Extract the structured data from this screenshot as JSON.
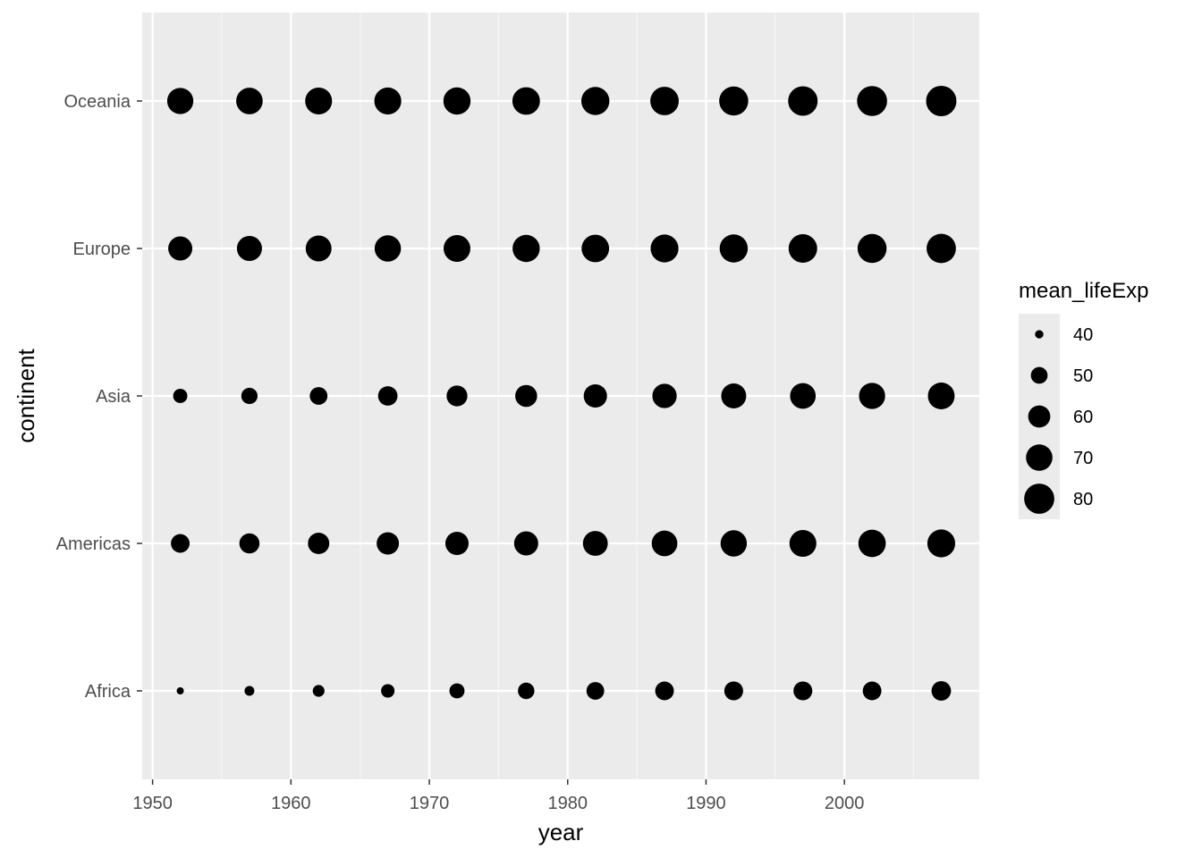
{
  "chart_data": {
    "type": "scatter",
    "title": "",
    "xlabel": "year",
    "ylabel": "continent",
    "xlim": [
      1949.25,
      2009.75
    ],
    "x_ticks": [
      1950,
      1960,
      1970,
      1980,
      1990,
      2000
    ],
    "x_tick_labels": [
      "1950",
      "1960",
      "1970",
      "1980",
      "1990",
      "2000"
    ],
    "categories": [
      "Africa",
      "Americas",
      "Asia",
      "Europe",
      "Oceania"
    ],
    "x": [
      1952,
      1957,
      1962,
      1967,
      1972,
      1977,
      1982,
      1987,
      1992,
      1997,
      2002,
      2007
    ],
    "size_variable": "mean_lifeExp",
    "series": [
      {
        "category": "Africa",
        "values": [
          39.1,
          41.3,
          43.3,
          45.3,
          47.5,
          49.6,
          51.6,
          53.3,
          53.6,
          53.6,
          53.3,
          54.8
        ]
      },
      {
        "category": "Americas",
        "values": [
          53.3,
          56.0,
          58.4,
          60.4,
          62.4,
          64.4,
          66.2,
          68.1,
          69.6,
          71.2,
          72.4,
          73.6
        ]
      },
      {
        "category": "Asia",
        "values": [
          46.3,
          49.3,
          51.6,
          54.7,
          57.3,
          59.6,
          62.6,
          64.9,
          66.5,
          68.0,
          69.2,
          70.7
        ]
      },
      {
        "category": "Europe",
        "values": [
          64.4,
          66.7,
          68.5,
          69.7,
          70.8,
          71.9,
          72.8,
          73.6,
          74.4,
          75.5,
          76.7,
          77.6
        ]
      },
      {
        "category": "Oceania",
        "values": [
          69.3,
          70.3,
          71.1,
          71.3,
          71.9,
          72.9,
          74.3,
          75.3,
          76.9,
          78.2,
          79.7,
          80.7
        ]
      }
    ],
    "legend": {
      "title": "mean_lifeExp",
      "position": "right",
      "entries": [
        {
          "value": 40,
          "label": "40"
        },
        {
          "value": 50,
          "label": "50"
        },
        {
          "value": 60,
          "label": "60"
        },
        {
          "value": 70,
          "label": "70"
        },
        {
          "value": 80,
          "label": "80"
        }
      ]
    },
    "grid": true,
    "colors": {
      "panel_background": "#ebebeb",
      "grid_major": "#ffffff",
      "grid_minor": "#f5f5f5",
      "point": "#000000",
      "tick_text": "#4d4d4d",
      "tick_mark": "#333333"
    }
  }
}
